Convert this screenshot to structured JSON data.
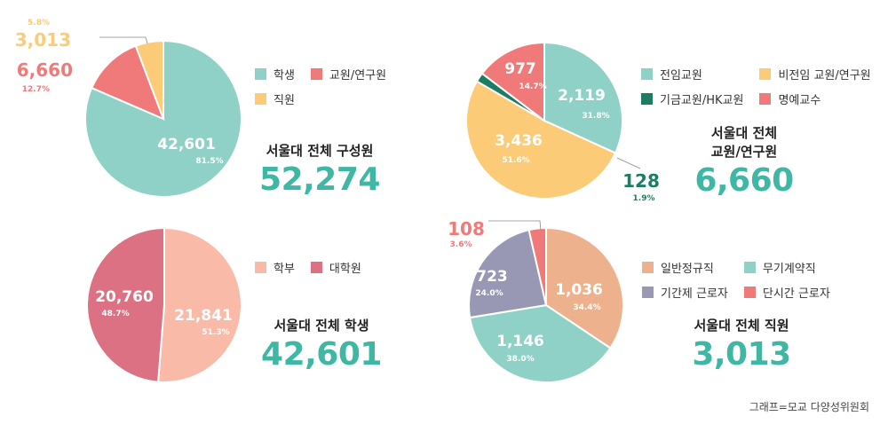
{
  "chart_data": [
    {
      "type": "pie",
      "categories": [
        "학생",
        "교원/연구원",
        "직원"
      ],
      "values": [
        42601,
        6660,
        3013
      ],
      "value_labels": [
        "42,601",
        "6,660",
        "3,013"
      ],
      "percent_labels": [
        "81.5%",
        "12.7%",
        "5.8%"
      ],
      "colors": [
        "#8fd1c6",
        "#f07a79",
        "#fbcb78"
      ],
      "start_angle_deg": 0,
      "legend_position": "right",
      "summary_title": "서울대 전체 구성원",
      "summary_value": "52,274",
      "summary_color": "#3eb7a4"
    },
    {
      "type": "pie",
      "categories": [
        "전임교원",
        "비전임 교원/연구원",
        "기금교원/HK교원",
        "명예교수"
      ],
      "values": [
        2119,
        3436,
        128,
        977
      ],
      "value_labels": [
        "2,119",
        "3,436",
        "128",
        "977"
      ],
      "percent_labels": [
        "31.8%",
        "51.6%",
        "1.9%",
        "14.7%"
      ],
      "colors": [
        "#8fd1c6",
        "#fbcb78",
        "#1d7c64",
        "#f07a79"
      ],
      "start_angle_deg": 0,
      "legend_position": "top-right",
      "summary_title": "서울대 전체\n교원/연구원",
      "summary_value": "6,660",
      "summary_color": "#3eb7a4"
    },
    {
      "type": "pie",
      "categories": [
        "학부",
        "대학원"
      ],
      "values": [
        21841,
        20760
      ],
      "value_labels": [
        "21,841",
        "20,760"
      ],
      "percent_labels": [
        "51.3%",
        "48.7%"
      ],
      "colors": [
        "#f9bba8",
        "#dc7184"
      ],
      "start_angle_deg": 0,
      "legend_position": "right",
      "summary_title": "서울대 전체 학생",
      "summary_value": "42,601",
      "summary_color": "#3eb7a4"
    },
    {
      "type": "pie",
      "categories": [
        "일반정규직",
        "무기계약직",
        "기간제 근로자",
        "단시간 근로자"
      ],
      "values": [
        1036,
        1146,
        723,
        108
      ],
      "value_labels": [
        "1,036",
        "1,146",
        "723",
        "108"
      ],
      "percent_labels": [
        "34.4%",
        "38.0%",
        "24.0%",
        "3.6%"
      ],
      "colors": [
        "#edb28d",
        "#8fd1c6",
        "#9898b4",
        "#f07a79"
      ],
      "start_angle_deg": 0,
      "legend_position": "right",
      "summary_title": "서울대 전체 직원",
      "summary_value": "3,013",
      "summary_color": "#3eb7a4"
    }
  ],
  "source": "그래프=모교 다양성위원회"
}
